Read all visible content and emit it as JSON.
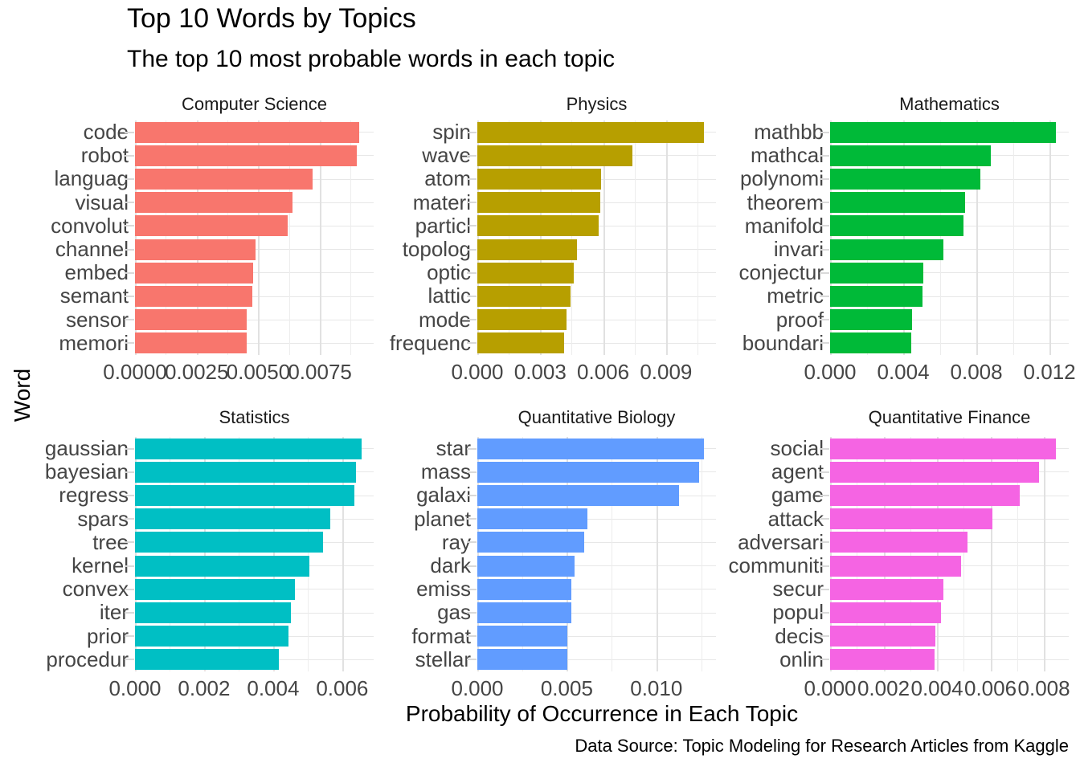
{
  "header": {
    "title": "Top 10 Words by Topics",
    "subtitle": "The top 10 most probable words in each topic"
  },
  "axes": {
    "x_title": "Probability of Occurrence in Each Topic",
    "y_title": "Word"
  },
  "caption": "Data Source: Topic Modeling for Research Articles from Kaggle",
  "chart_data": [
    {
      "type": "bar",
      "orientation": "horizontal",
      "title": "Computer Science",
      "color": "#F8766D",
      "categories": [
        "code",
        "robot",
        "languag",
        "visual",
        "convolut",
        "channel",
        "embed",
        "semant",
        "sensor",
        "memori"
      ],
      "values": [
        0.0091,
        0.009,
        0.0072,
        0.0064,
        0.0062,
        0.0049,
        0.0048,
        0.00477,
        0.00454,
        0.00454
      ],
      "xlim": [
        0,
        0.00968
      ],
      "x_ticks": [
        0,
        0.0025,
        0.005,
        0.0075
      ],
      "x_tick_labels": [
        "0.0000",
        "0.0025",
        "0.0050",
        "0.0075"
      ],
      "grid": "major+minor"
    },
    {
      "type": "bar",
      "orientation": "horizontal",
      "title": "Physics",
      "color": "#B79F00",
      "categories": [
        "spin",
        "wave",
        "atom",
        "materi",
        "particl",
        "topolog",
        "optic",
        "lattic",
        "mode",
        "frequenc"
      ],
      "values": [
        0.0108,
        0.0074,
        0.0059,
        0.00587,
        0.0058,
        0.00477,
        0.0046,
        0.00445,
        0.00426,
        0.00415
      ],
      "xlim": [
        0,
        0.01138
      ],
      "x_ticks": [
        0,
        0.003,
        0.006,
        0.009
      ],
      "x_tick_labels": [
        "0.000",
        "0.003",
        "0.006",
        "0.009"
      ],
      "grid": "major+minor"
    },
    {
      "type": "bar",
      "orientation": "horizontal",
      "title": "Mathematics",
      "color": "#00BA38",
      "categories": [
        "mathbb",
        "mathcal",
        "polynomi",
        "theorem",
        "manifold",
        "invari",
        "conjectur",
        "metric",
        "proof",
        "boundari"
      ],
      "values": [
        0.01235,
        0.0088,
        0.0082,
        0.0074,
        0.0073,
        0.0062,
        0.0051,
        0.00504,
        0.00448,
        0.00445
      ],
      "xlim": [
        0,
        0.01305
      ],
      "x_ticks": [
        0,
        0.004,
        0.008,
        0.012
      ],
      "x_tick_labels": [
        "0.000",
        "0.004",
        "0.008",
        "0.012"
      ],
      "grid": "major+minor"
    },
    {
      "type": "bar",
      "orientation": "horizontal",
      "title": "Statistics",
      "color": "#00BFC4",
      "categories": [
        "gaussian",
        "bayesian",
        "regress",
        "spars",
        "tree",
        "kernel",
        "convex",
        "iter",
        "prior",
        "procedur"
      ],
      "values": [
        0.00655,
        0.00639,
        0.00636,
        0.00566,
        0.00545,
        0.00505,
        0.00463,
        0.00451,
        0.00444,
        0.00416
      ],
      "xlim": [
        0,
        0.00691
      ],
      "x_ticks": [
        0,
        0.002,
        0.004,
        0.006
      ],
      "x_tick_labels": [
        "0.000",
        "0.002",
        "0.004",
        "0.006"
      ],
      "grid": "major+minor"
    },
    {
      "type": "bar",
      "orientation": "horizontal",
      "title": "Quantitative Biology",
      "color": "#619CFF",
      "categories": [
        "star",
        "mass",
        "galaxi",
        "planet",
        "ray",
        "dark",
        "emiss",
        "gas",
        "format",
        "stellar"
      ],
      "values": [
        0.01267,
        0.01239,
        0.01126,
        0.00613,
        0.00598,
        0.00542,
        0.00526,
        0.00523,
        0.00501,
        0.00501
      ],
      "xlim": [
        0,
        0.01333
      ],
      "x_ticks": [
        0,
        0.005,
        0.01
      ],
      "x_tick_labels": [
        "0.000",
        "0.005",
        "0.010"
      ],
      "grid": "major+minor"
    },
    {
      "type": "bar",
      "orientation": "horizontal",
      "title": "Quantitative Finance",
      "color": "#F564E3",
      "categories": [
        "social",
        "agent",
        "game",
        "attack",
        "adversari",
        "communiti",
        "secur",
        "popul",
        "decis",
        "onlin"
      ],
      "values": [
        0.00846,
        0.00783,
        0.0071,
        0.00607,
        0.00513,
        0.0049,
        0.00425,
        0.00416,
        0.00395,
        0.00392
      ],
      "xlim": [
        0,
        0.00893
      ],
      "x_ticks": [
        0,
        0.002,
        0.004,
        0.006,
        0.008
      ],
      "x_tick_labels": [
        "0.000",
        "0.002",
        "0.004",
        "0.006",
        "0.008"
      ],
      "grid": "major+minor"
    }
  ]
}
